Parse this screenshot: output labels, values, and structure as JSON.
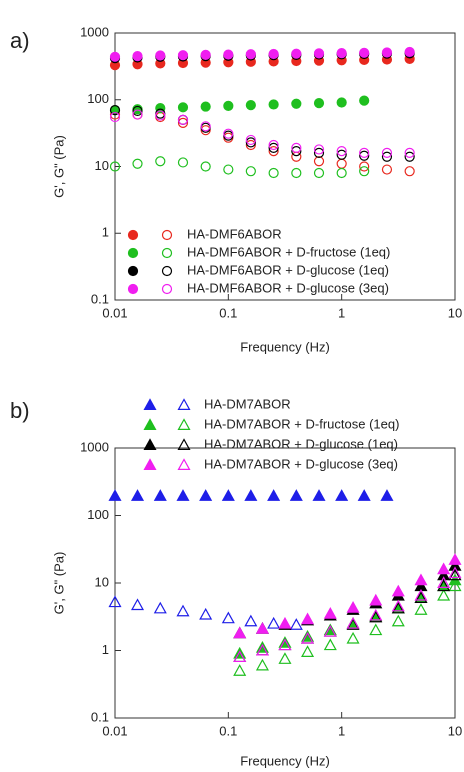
{
  "chart_data": [
    {
      "type": "scatter",
      "panel_label": "a)",
      "xlabel": "Frequency (Hz)",
      "ylabel": "G', G\" (Pa)",
      "log_x": true,
      "log_y": true,
      "marker": "circle",
      "legend": "lower left",
      "xlim": [
        0.01,
        10
      ],
      "xticks": [
        0.01,
        0.1,
        1,
        10
      ],
      "ylim": [
        0.1,
        1000
      ],
      "yticks": [
        0.1,
        1,
        10,
        100,
        1000
      ],
      "series": [
        {
          "name": "HA-DMF6ABOR",
          "color": "#e8281e",
          "x": [
            0.01,
            0.0158,
            0.0251,
            0.0398,
            0.0631,
            0.1,
            0.158,
            0.251,
            0.398,
            0.631,
            1,
            1.58,
            2.51,
            3.98
          ],
          "storage": [
            330,
            340,
            350,
            355,
            360,
            365,
            370,
            375,
            380,
            385,
            390,
            395,
            400,
            410
          ],
          "loss": [
            60,
            60,
            55,
            45,
            35,
            27,
            21,
            17,
            14,
            12,
            11,
            10,
            9,
            8.5
          ]
        },
        {
          "name": "HA-DMF6ABOR + D-fructose (1eq)",
          "color": "#1fbf1f",
          "x": [
            0.01,
            0.0158,
            0.0251,
            0.0398,
            0.0631,
            0.1,
            0.158,
            0.251,
            0.398,
            0.631,
            1,
            1.58
          ],
          "storage": [
            70,
            72,
            75,
            77,
            79,
            81,
            83,
            85,
            87,
            89,
            91,
            97
          ],
          "loss": [
            10,
            11,
            12,
            11.5,
            10,
            9,
            8.5,
            8,
            8,
            8,
            8,
            8.5
          ]
        },
        {
          "name": "HA-DMF6ABOR + D-glucose (1eq)",
          "color": "#000000",
          "x": [
            0.01,
            0.0158,
            0.0251,
            0.0398,
            0.0631,
            0.1,
            0.158,
            0.251,
            0.398,
            0.631,
            1,
            1.58,
            2.51,
            3.98
          ],
          "storage": [
            420,
            430,
            440,
            445,
            450,
            455,
            460,
            465,
            470,
            475,
            480,
            485,
            490,
            495
          ],
          "loss": [
            70,
            68,
            62,
            50,
            38,
            29,
            23,
            19,
            17,
            16,
            15,
            14.5,
            14,
            14
          ]
        },
        {
          "name": "HA-DMF6ABOR + D-glucose (3eq)",
          "color": "#f01ef0",
          "x": [
            0.01,
            0.0158,
            0.0251,
            0.0398,
            0.0631,
            0.1,
            0.158,
            0.251,
            0.398,
            0.631,
            1,
            1.58,
            2.51,
            3.98
          ],
          "storage": [
            440,
            450,
            460,
            465,
            470,
            475,
            480,
            485,
            490,
            495,
            500,
            505,
            510,
            520
          ],
          "loss": [
            55,
            60,
            58,
            50,
            40,
            31,
            25,
            21,
            19,
            18,
            17,
            16,
            16,
            16
          ]
        }
      ]
    },
    {
      "type": "scatter",
      "panel_label": "b)",
      "xlabel": "Frequency (Hz)",
      "ylabel": "G', G\" (Pa)",
      "log_x": true,
      "log_y": true,
      "marker": "triangle",
      "legend": "top outside",
      "xlim": [
        0.01,
        10
      ],
      "xticks": [
        0.01,
        0.1,
        1,
        10
      ],
      "ylim": [
        0.1,
        1000
      ],
      "yticks": [
        0.1,
        1,
        10,
        100,
        1000
      ],
      "series": [
        {
          "name": "HA-DM7ABOR",
          "color": "#1e1ee8",
          "x": [
            0.01,
            0.0158,
            0.0251,
            0.0398,
            0.0631,
            0.1,
            0.158,
            0.251,
            0.398,
            0.631,
            1,
            1.58,
            2.51
          ],
          "storage": [
            195,
            195,
            195,
            195,
            195,
            195,
            195,
            195,
            195,
            195,
            195,
            195,
            195
          ],
          "loss": [
            5.2,
            4.7,
            4.2,
            3.8,
            3.4,
            3.0,
            2.7,
            2.5,
            2.4,
            null,
            null,
            null,
            null
          ]
        },
        {
          "name": "HA-DM7ABOR + D-fructose (1eq)",
          "color": "#1fbf1f",
          "x": [
            0.126,
            0.2,
            0.316,
            0.5,
            0.794,
            1.26,
            2,
            3.16,
            5.01,
            7.94,
            10
          ],
          "storage": [
            0.9,
            1.1,
            1.3,
            1.6,
            2.0,
            2.5,
            3.2,
            4.2,
            6,
            9,
            11
          ],
          "loss": [
            0.5,
            0.6,
            0.75,
            0.95,
            1.2,
            1.5,
            2,
            2.7,
            4,
            6.5,
            9
          ]
        },
        {
          "name": "HA-DM7ABOR + D-glucose (1eq)",
          "color": "#000000",
          "x": [
            0.126,
            0.2,
            0.316,
            0.5,
            0.794,
            1.26,
            2,
            3.16,
            5.01,
            7.94,
            10
          ],
          "storage": [
            1.8,
            2.1,
            2.4,
            2.8,
            3.3,
            4.0,
            5.0,
            6.5,
            9,
            13,
            18
          ],
          "loss": [
            0.8,
            1.0,
            1.2,
            1.5,
            1.9,
            2.4,
            3.1,
            4.2,
            6,
            9,
            13
          ]
        },
        {
          "name": "HA-DM7ABOR + D-glucose (3eq)",
          "color": "#f01ef0",
          "x": [
            0.126,
            0.2,
            0.316,
            0.5,
            0.794,
            1.26,
            2,
            3.16,
            5.01,
            7.94,
            10
          ],
          "storage": [
            1.8,
            2.1,
            2.5,
            2.9,
            3.5,
            4.3,
            5.5,
            7.5,
            11,
            16,
            22
          ],
          "loss": [
            0.8,
            1.0,
            1.2,
            1.5,
            1.9,
            2.5,
            3.3,
            4.5,
            6.5,
            10,
            14
          ]
        }
      ]
    }
  ]
}
